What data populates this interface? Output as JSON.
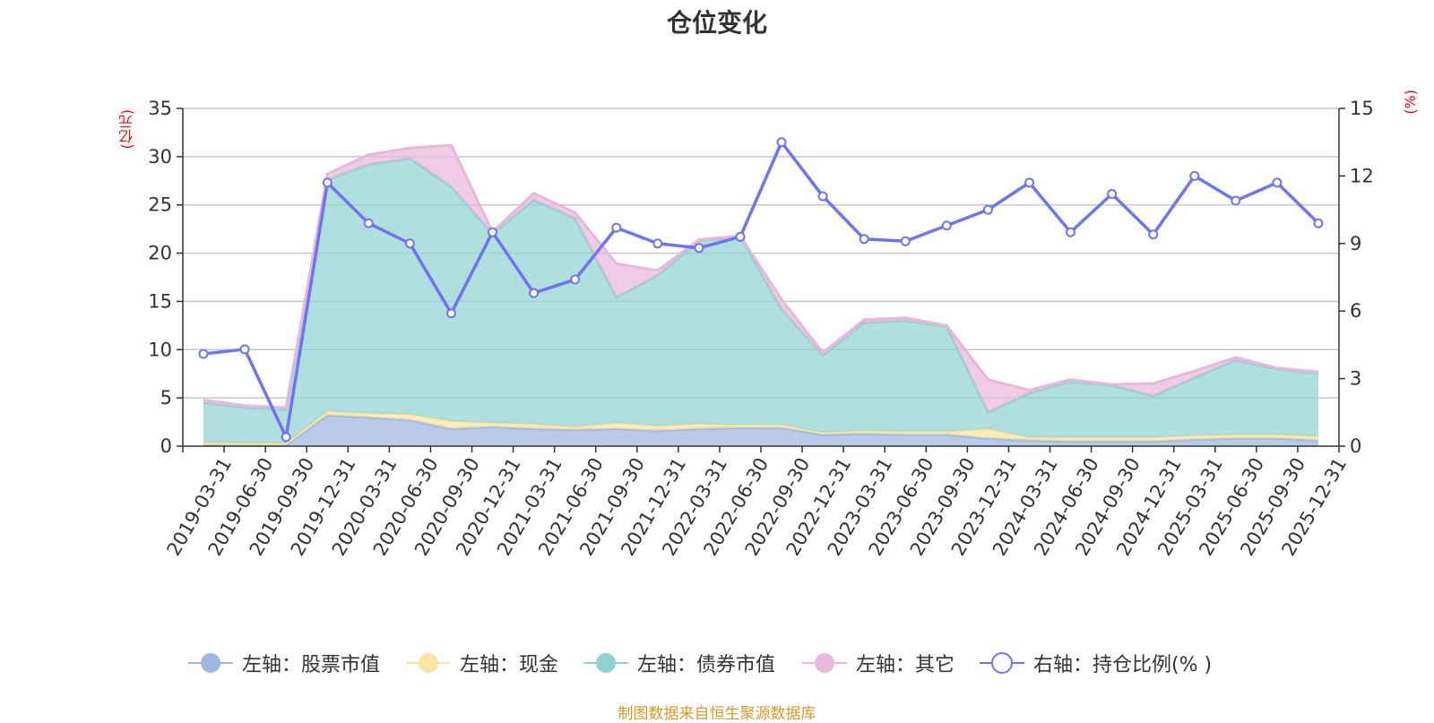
{
  "chart_data": {
    "type": "area",
    "title": "仓位变化",
    "left_axis_unit": "(亿元)",
    "right_axis_unit": "(%)",
    "ylim_left": [
      0,
      35
    ],
    "ylim_right": [
      0,
      15
    ],
    "left_ticks": [
      0,
      5,
      10,
      15,
      20,
      25,
      30,
      35
    ],
    "right_ticks": [
      0,
      3,
      6,
      9,
      12,
      15
    ],
    "categories": [
      "2019-03-31",
      "2019-06-30",
      "2019-09-30",
      "2019-12-31",
      "2020-03-31",
      "2020-06-30",
      "2020-09-30",
      "2020-12-31",
      "2021-03-31",
      "2021-06-30",
      "2021-09-30",
      "2021-12-31",
      "2022-03-31",
      "2022-06-30",
      "2022-09-30",
      "2022-12-31",
      "2023-03-31",
      "2023-06-30",
      "2023-09-30",
      "2023-12-31",
      "2024-03-31",
      "2024-06-30",
      "2024-09-30",
      "2024-12-31",
      "2025-03-31",
      "2025-06-30",
      "2025-09-30",
      "2025-12-31"
    ],
    "series": [
      {
        "name": "左轴：股票市值",
        "axis": "left",
        "color": "#9fb7e0",
        "values": [
          0.1,
          0.1,
          0.1,
          3.2,
          3.0,
          2.7,
          1.8,
          2.0,
          1.8,
          1.7,
          1.8,
          1.6,
          1.8,
          1.9,
          1.9,
          1.2,
          1.3,
          1.2,
          1.2,
          0.8,
          0.6,
          0.5,
          0.5,
          0.5,
          0.7,
          0.8,
          0.8,
          0.6
        ]
      },
      {
        "name": "左轴：现金",
        "axis": "left",
        "color": "#f9e4a0",
        "values": [
          0.3,
          0.2,
          0.2,
          0.4,
          0.4,
          0.6,
          0.8,
          0.4,
          0.5,
          0.3,
          0.6,
          0.5,
          0.5,
          0.3,
          0.3,
          0.2,
          0.3,
          0.3,
          0.3,
          1.0,
          0.3,
          0.4,
          0.4,
          0.4,
          0.4,
          0.4,
          0.4,
          0.4
        ]
      },
      {
        "name": "左轴：债券市值",
        "axis": "left",
        "color": "#91d2d2",
        "values": [
          4.1,
          3.7,
          3.5,
          24.0,
          25.8,
          26.5,
          24.3,
          19.6,
          23.2,
          21.6,
          13.0,
          15.6,
          19.0,
          19.5,
          12.0,
          8.0,
          11.2,
          11.5,
          10.9,
          1.7,
          4.6,
          5.8,
          5.4,
          4.3,
          6.0,
          7.7,
          6.8,
          6.5
        ]
      },
      {
        "name": "左轴：其它",
        "axis": "left",
        "color": "#e9b7db",
        "values": [
          0.3,
          0.2,
          0.2,
          0.6,
          1.0,
          1.1,
          4.3,
          0.2,
          0.7,
          0.6,
          3.5,
          0.5,
          0.1,
          0.1,
          1.0,
          0.3,
          0.3,
          0.3,
          0.1,
          3.4,
          0.3,
          0.2,
          0.1,
          1.3,
          0.7,
          0.3,
          0.1,
          0.2
        ]
      },
      {
        "name": "右轴：持仓比例(% )",
        "axis": "right",
        "color": "#7074f0",
        "values": [
          4.1,
          4.3,
          0.4,
          11.7,
          9.9,
          9.0,
          5.9,
          9.5,
          6.8,
          7.4,
          9.7,
          9.0,
          8.8,
          9.3,
          13.5,
          11.1,
          9.2,
          9.1,
          9.8,
          10.5,
          11.7,
          9.5,
          11.2,
          9.4,
          12.0,
          10.9,
          11.7,
          9.9
        ]
      }
    ]
  },
  "source_note": "制图数据来自恒生聚源数据库"
}
